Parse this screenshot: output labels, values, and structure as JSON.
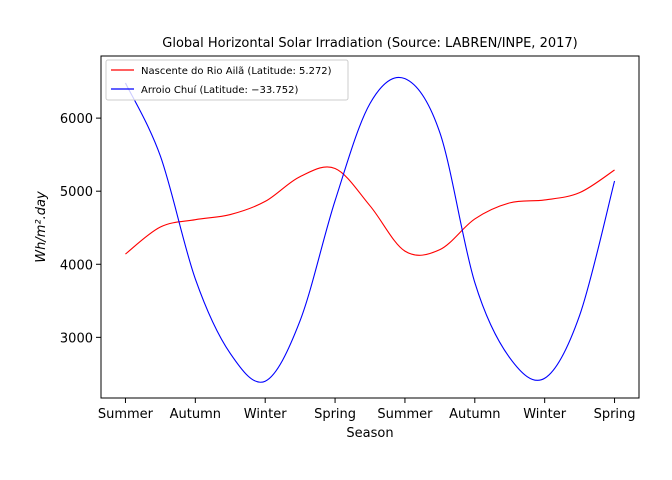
{
  "chart_data": {
    "type": "line",
    "title": "Global Horizontal Solar Irradiation (Source: LABREN/INPE, 2017)",
    "xlabel": "Season",
    "ylabel": "Wh/m².day",
    "categories": [
      "Summer",
      "Autumn",
      "Winter",
      "Spring",
      "Summer",
      "Autumn",
      "Winter",
      "Spring"
    ],
    "x": [
      0,
      0.5,
      1,
      1.5,
      2,
      2.5,
      3,
      3.5,
      4,
      4.5,
      5,
      5.5,
      6,
      6.5,
      7
    ],
    "xlim": [
      -0.35,
      7.35
    ],
    "ylim": [
      2170,
      6850
    ],
    "yticks": [
      3000,
      4000,
      5000,
      6000
    ],
    "grid": false,
    "legend_position": "top-left",
    "series": [
      {
        "name": "Nascente do Rio Ailã (Latitude: 5.272)",
        "color": "#ff0000",
        "values": [
          4140,
          4510,
          4610,
          4680,
          4860,
          5200,
          5310,
          4800,
          4180,
          4200,
          4620,
          4840,
          4880,
          4980,
          5290
        ]
      },
      {
        "name": "Arroio Chuí (Latitude: −33.752)",
        "color": "#0000ff",
        "values": [
          6480,
          5480,
          3800,
          2780,
          2400,
          3230,
          4870,
          6200,
          6540,
          5800,
          3750,
          2720,
          2440,
          3300,
          5140
        ]
      }
    ]
  }
}
